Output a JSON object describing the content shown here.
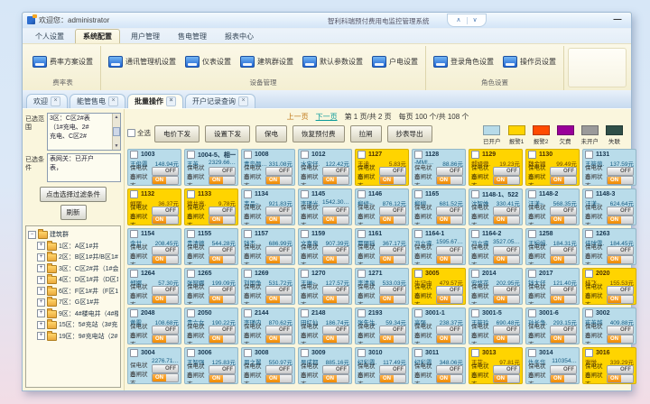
{
  "window": {
    "welcome": "欢迎您：administrator",
    "system_title": "智利科瑞预付费用电监控管理系统",
    "minimize_label": "—",
    "collapse_up": "∧",
    "collapse_down": "∨"
  },
  "menu": {
    "items": [
      {
        "label": "个人设置",
        "active": false
      },
      {
        "label": "系统配置",
        "active": true
      },
      {
        "label": "用户管理",
        "active": false
      },
      {
        "label": "售电管理",
        "active": false
      },
      {
        "label": "报表中心",
        "active": false
      }
    ]
  },
  "ribbon": {
    "groups": [
      {
        "label": "费率表",
        "buttons": [
          "费率方案设置"
        ]
      },
      {
        "label": "设备管理",
        "buttons": [
          "通讯管理机设置",
          "仪表设置",
          "建筑群设置",
          "默认参数设置",
          "户电设置"
        ]
      },
      {
        "label": "角色设置",
        "buttons": [
          "登录角色设置",
          "操作员设置"
        ]
      }
    ]
  },
  "tabs": [
    {
      "label": "欢迎",
      "active": false
    },
    {
      "label": "能管售电",
      "active": false
    },
    {
      "label": "批量操作",
      "active": true
    },
    {
      "label": "开户记录查询",
      "active": false
    }
  ],
  "sidebar": {
    "scope_label": "已选范围",
    "scope_lines": [
      "3区：C区2#表",
      "（1#充电、2#",
      "充电、C区2#"
    ],
    "condition_label": "已选条件",
    "condition_lines": [
      "表网关：已开户",
      "表，"
    ],
    "filter_button": "点击选择过滤条件",
    "refresh_button": "刷新",
    "tree": {
      "root": "建筑群",
      "items": [
        "1区：A区1#井",
        "2区：B区1#井/B区1#…",
        "3区：C区2#井（1#会…",
        "4区：D区1#井（D区1…",
        "6区：F区1#井（F区1#…",
        "7区：G区1#井",
        "9区：4#楼电井（4#楼…",
        "15区：5#充站（3#充…",
        "19区：9#充电站（2#…"
      ]
    }
  },
  "pagination": {
    "prev": "上一页",
    "next": "下一页",
    "info": "第 1 页/共 2 页　每页 100 个/共 108 个"
  },
  "actions": {
    "select_all": "全选",
    "buttons": [
      "电价下发",
      "设置下发",
      "保电",
      "恢复预付费",
      "拉闸",
      "抄表导出"
    ]
  },
  "legend": [
    {
      "label": "已开户",
      "color": "#b7dbe9"
    },
    {
      "label": "报警1",
      "color": "#ffd400"
    },
    {
      "label": "报警2",
      "color": "#ff4b00"
    },
    {
      "label": "欠费",
      "color": "#990099"
    },
    {
      "label": "未开户",
      "color": "#9a9a9a"
    },
    {
      "label": "失联",
      "color": "#2f4f48"
    }
  ],
  "card_labels": {
    "protect": "保电状态",
    "switch": "合闸状态",
    "on": "ON",
    "off": "OFF"
  },
  "cards": [
    {
      "id": "1003",
      "name": "王俊霞",
      "value": "148.94元",
      "state": "open"
    },
    {
      "id": "1004-5、相一",
      "name": "王英",
      "value": "2329.66…",
      "state": "open"
    },
    {
      "id": "1008",
      "name": "青岛颜…",
      "value": "331.08元",
      "state": "open"
    },
    {
      "id": "1012",
      "name": "水宝仔.",
      "value": "122.42元",
      "state": "open"
    },
    {
      "id": "1127",
      "name": "王迪…",
      "value": "5.83元",
      "state": "alarm"
    },
    {
      "id": "1128",
      "name": "-MM!…",
      "value": "88.86元",
      "state": "open"
    },
    {
      "id": "1129",
      "name": "郝娅蓉.",
      "value": "19.23元",
      "state": "alarm"
    },
    {
      "id": "1130",
      "name": "魏金颖",
      "value": "99.49元",
      "state": "alarm"
    },
    {
      "id": "1131",
      "name": "王筱茵.",
      "value": "137.59元",
      "state": "open"
    },
    {
      "id": "1132",
      "name": "帼丽.",
      "value": "36.37元",
      "state": "alarm"
    },
    {
      "id": "1133",
      "name": "德井亮.",
      "value": "9.78元",
      "state": "alarm"
    },
    {
      "id": "1134",
      "name": "韦品~",
      "value": "921.83元",
      "state": "open"
    },
    {
      "id": "1145",
      "name": "李瑾光.",
      "value": "1542.30…",
      "state": "open"
    },
    {
      "id": "1146",
      "name": "柳修~",
      "value": "876.12元",
      "state": "open"
    },
    {
      "id": "1165",
      "name": "柳柳",
      "value": "681.52元",
      "state": "open"
    },
    {
      "id": "1148-1、522",
      "name": "沈智姝",
      "value": "330.41元",
      "state": "open"
    },
    {
      "id": "1148-2",
      "name": "汪漾~",
      "value": "568.35元",
      "state": "open"
    },
    {
      "id": "1148-3",
      "name": "汪漾~",
      "value": "624.64元",
      "state": "open"
    },
    {
      "id": "1154",
      "name": "金廿",
      "value": "208.45元",
      "state": "open"
    },
    {
      "id": "1155",
      "name": "贵清德",
      "value": "544.28元",
      "state": "open"
    },
    {
      "id": "1157",
      "name": "钱杰",
      "value": "686.99元",
      "state": "open"
    },
    {
      "id": "1159",
      "name": "文嘉泉",
      "value": "907.39元",
      "state": "open"
    },
    {
      "id": "1161",
      "name": "覃丽瑶",
      "value": "367.17元",
      "state": "open"
    },
    {
      "id": "1164-1",
      "name": "冯立睿.",
      "value": "1595.67…",
      "state": "open"
    },
    {
      "id": "1164-2",
      "name": "冯立睿",
      "value": "3527.05…",
      "state": "open"
    },
    {
      "id": "1258",
      "name": "王娟娟.",
      "value": "184.31元",
      "state": "open"
    },
    {
      "id": "1263",
      "name": "佳球雪.",
      "value": "184.45元",
      "state": "open"
    },
    {
      "id": "1264",
      "name": "郑娜.",
      "value": "57.30元",
      "state": "open"
    },
    {
      "id": "1265",
      "name": "张冠娜",
      "value": "199.09元",
      "state": "open"
    },
    {
      "id": "1269",
      "name": "刘国争",
      "value": "531.72元",
      "state": "open"
    },
    {
      "id": "1270",
      "name": "王琳~",
      "value": "127.57元",
      "state": "open"
    },
    {
      "id": "1271",
      "name": "李清泉",
      "value": "533.03元",
      "state": "open"
    },
    {
      "id": "3005",
      "name": "牛记中",
      "value": "479.57元",
      "state": "alarm"
    },
    {
      "id": "2014",
      "name": "安悠花",
      "value": "202.95元",
      "state": "open"
    },
    {
      "id": "2017",
      "name": "钱大仔",
      "value": "121.40元",
      "state": "open"
    },
    {
      "id": "2020",
      "name": "桂飞",
      "value": "155.53元",
      "state": "alarm"
    },
    {
      "id": "2048",
      "name": "黄霞",
      "value": "108.68元",
      "state": "open"
    },
    {
      "id": "2050",
      "name": "贵六女",
      "value": "190.22元",
      "state": "open"
    },
    {
      "id": "2144",
      "name": "李瑾内",
      "value": "870.62元",
      "state": "open"
    },
    {
      "id": "2148",
      "name": "田红仙",
      "value": "186.74元",
      "state": "open"
    },
    {
      "id": "2193",
      "name": "张先生.",
      "value": "59.34元",
      "state": "open"
    },
    {
      "id": "3001-1",
      "name": "高强",
      "value": "238.37元",
      "state": "open"
    },
    {
      "id": "3001-5",
      "name": "王筱玲",
      "value": "690.48元",
      "state": "open"
    },
    {
      "id": "3001-6",
      "name": "孙长争.",
      "value": "293.15元",
      "state": "open"
    },
    {
      "id": "3002",
      "name": "崔英越",
      "value": "409.88元",
      "state": "open"
    },
    {
      "id": "3004",
      "name": "",
      "value": "2276.71…",
      "state": "open"
    },
    {
      "id": "3006",
      "name": "王智强",
      "value": "125.83元",
      "state": "open"
    },
    {
      "id": "3008",
      "name": "周之翼",
      "value": "550.97元",
      "state": "open"
    },
    {
      "id": "3009",
      "name": "吴成都",
      "value": "885.16元",
      "state": "open"
    },
    {
      "id": "3010",
      "name": "纪彩霞.",
      "value": "117.49元",
      "state": "open"
    },
    {
      "id": "3011",
      "name": "纪彩霞",
      "value": "348.06元",
      "state": "open"
    },
    {
      "id": "3013",
      "name": "王花~",
      "value": "97.81元",
      "state": "alarm"
    },
    {
      "id": "3014",
      "name": "仇冬华",
      "value": "110354…",
      "state": "open"
    },
    {
      "id": "3016",
      "name": "谢悦",
      "value": "339.29元",
      "state": "alarm"
    }
  ]
}
